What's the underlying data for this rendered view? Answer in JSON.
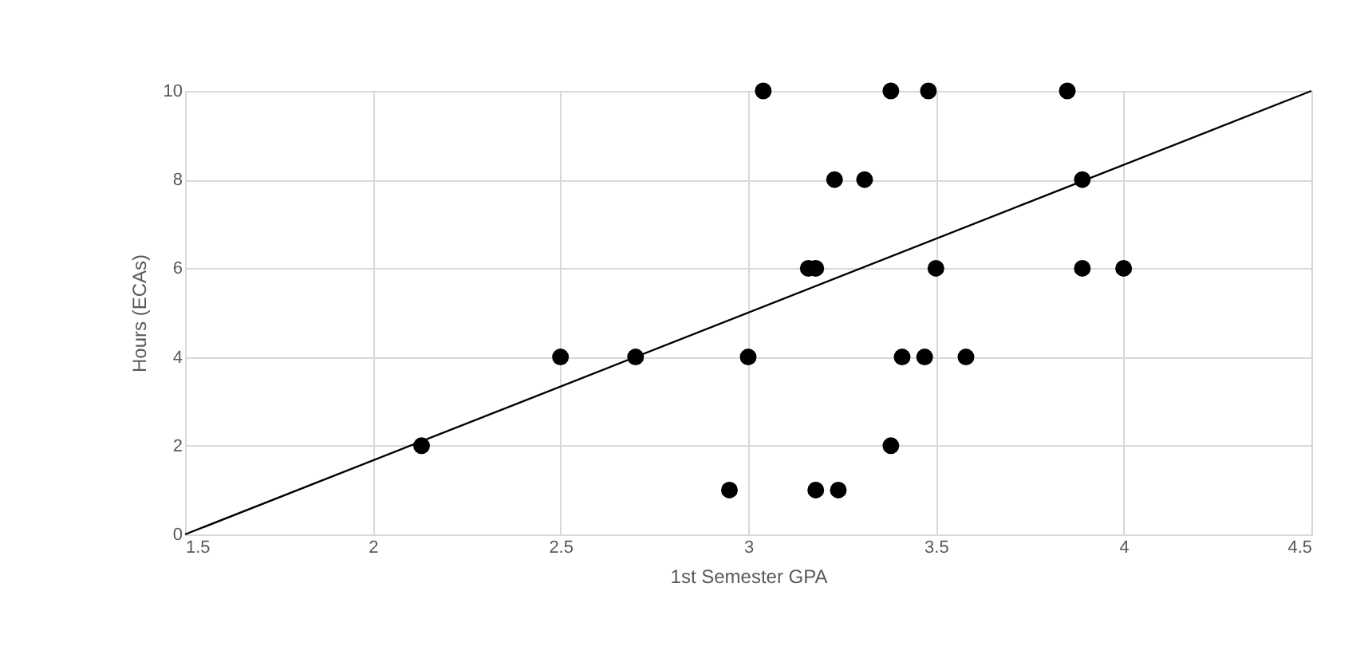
{
  "chart_data": {
    "type": "scatter",
    "xlabel": "1st Semester GPA",
    "ylabel": "Hours (ECAs)",
    "xlim": [
      1.5,
      4.5
    ],
    "xticks": [
      1.5,
      2,
      2.5,
      3,
      3.5,
      4,
      4.5
    ],
    "ylim": [
      0,
      10
    ],
    "yticks": [
      0,
      2,
      4,
      6,
      8,
      10
    ],
    "grid": true,
    "series": [
      {
        "color": "#000000",
        "marker": "circle",
        "x": [
          2.13,
          2.5,
          2.7,
          2.95,
          3.0,
          3.04,
          3.38,
          3.48,
          3.85,
          3.23,
          3.31,
          3.89,
          3.16,
          3.18,
          3.5,
          3.89,
          4.0,
          3.41,
          3.47,
          3.58,
          3.38,
          3.18,
          3.24
        ],
        "values": [
          2,
          4,
          4,
          1,
          4,
          10,
          10,
          10,
          10,
          8,
          8,
          8,
          6,
          6,
          6,
          6,
          6,
          4,
          4,
          4,
          2,
          1,
          1
        ]
      },
      {
        "type": "line",
        "color": "#000000",
        "line_style": "solid",
        "x": [
          1.5,
          4.5
        ],
        "values": [
          0,
          10
        ]
      }
    ]
  }
}
